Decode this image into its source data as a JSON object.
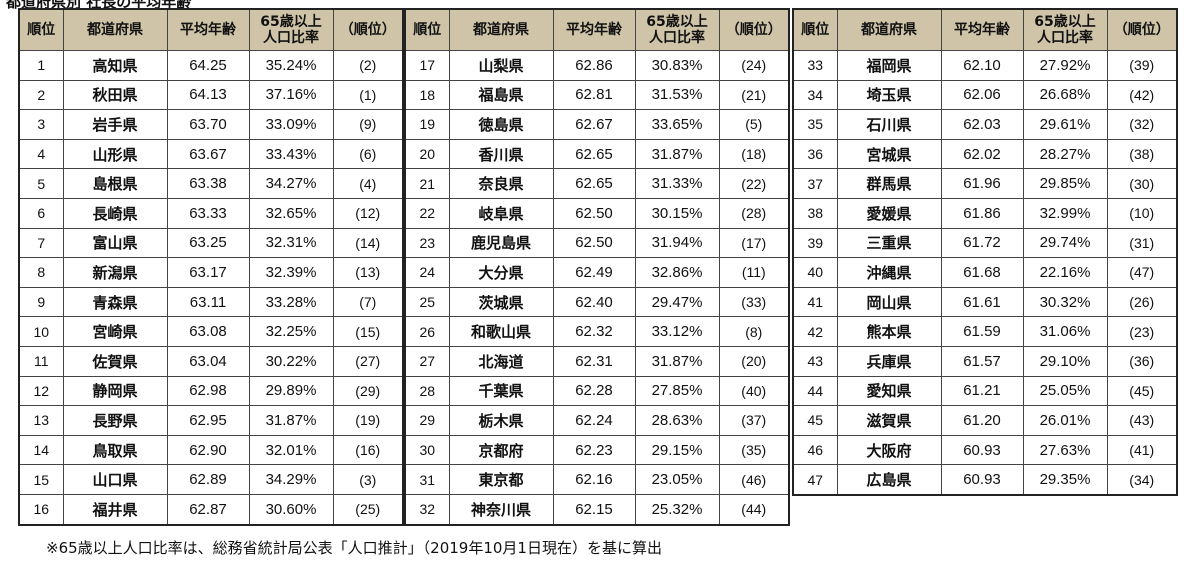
{
  "title": "都道府県別 社長の平均年齢",
  "headers": {
    "rank": "順位",
    "prefecture": "都道府県",
    "avg_age": "平均年齢",
    "elderly_ratio_line1": "65歳以上",
    "elderly_ratio_line2": "人口比率",
    "ratio_rank": "（順位）"
  },
  "tables": [
    {
      "rows": [
        {
          "rank": "1",
          "prefecture": "高知県",
          "avg_age": "64.25",
          "ratio": "35.24%",
          "ratio_rank": "(2)"
        },
        {
          "rank": "2",
          "prefecture": "秋田県",
          "avg_age": "64.13",
          "ratio": "37.16%",
          "ratio_rank": "(1)"
        },
        {
          "rank": "3",
          "prefecture": "岩手県",
          "avg_age": "63.70",
          "ratio": "33.09%",
          "ratio_rank": "(9)"
        },
        {
          "rank": "4",
          "prefecture": "山形県",
          "avg_age": "63.67",
          "ratio": "33.43%",
          "ratio_rank": "(6)"
        },
        {
          "rank": "5",
          "prefecture": "島根県",
          "avg_age": "63.38",
          "ratio": "34.27%",
          "ratio_rank": "(4)"
        },
        {
          "rank": "6",
          "prefecture": "長崎県",
          "avg_age": "63.33",
          "ratio": "32.65%",
          "ratio_rank": "(12)"
        },
        {
          "rank": "7",
          "prefecture": "富山県",
          "avg_age": "63.25",
          "ratio": "32.31%",
          "ratio_rank": "(14)"
        },
        {
          "rank": "8",
          "prefecture": "新潟県",
          "avg_age": "63.17",
          "ratio": "32.39%",
          "ratio_rank": "(13)"
        },
        {
          "rank": "9",
          "prefecture": "青森県",
          "avg_age": "63.11",
          "ratio": "33.28%",
          "ratio_rank": "(7)"
        },
        {
          "rank": "10",
          "prefecture": "宮崎県",
          "avg_age": "63.08",
          "ratio": "32.25%",
          "ratio_rank": "(15)"
        },
        {
          "rank": "11",
          "prefecture": "佐賀県",
          "avg_age": "63.04",
          "ratio": "30.22%",
          "ratio_rank": "(27)"
        },
        {
          "rank": "12",
          "prefecture": "静岡県",
          "avg_age": "62.98",
          "ratio": "29.89%",
          "ratio_rank": "(29)"
        },
        {
          "rank": "13",
          "prefecture": "長野県",
          "avg_age": "62.95",
          "ratio": "31.87%",
          "ratio_rank": "(19)"
        },
        {
          "rank": "14",
          "prefecture": "鳥取県",
          "avg_age": "62.90",
          "ratio": "32.01%",
          "ratio_rank": "(16)"
        },
        {
          "rank": "15",
          "prefecture": "山口県",
          "avg_age": "62.89",
          "ratio": "34.29%",
          "ratio_rank": "(3)"
        },
        {
          "rank": "16",
          "prefecture": "福井県",
          "avg_age": "62.87",
          "ratio": "30.60%",
          "ratio_rank": "(25)"
        }
      ]
    },
    {
      "rows": [
        {
          "rank": "17",
          "prefecture": "山梨県",
          "avg_age": "62.86",
          "ratio": "30.83%",
          "ratio_rank": "(24)"
        },
        {
          "rank": "18",
          "prefecture": "福島県",
          "avg_age": "62.81",
          "ratio": "31.53%",
          "ratio_rank": "(21)"
        },
        {
          "rank": "19",
          "prefecture": "徳島県",
          "avg_age": "62.67",
          "ratio": "33.65%",
          "ratio_rank": "(5)"
        },
        {
          "rank": "20",
          "prefecture": "香川県",
          "avg_age": "62.65",
          "ratio": "31.87%",
          "ratio_rank": "(18)"
        },
        {
          "rank": "21",
          "prefecture": "奈良県",
          "avg_age": "62.65",
          "ratio": "31.33%",
          "ratio_rank": "(22)"
        },
        {
          "rank": "22",
          "prefecture": "岐阜県",
          "avg_age": "62.50",
          "ratio": "30.15%",
          "ratio_rank": "(28)"
        },
        {
          "rank": "23",
          "prefecture": "鹿児島県",
          "avg_age": "62.50",
          "ratio": "31.94%",
          "ratio_rank": "(17)"
        },
        {
          "rank": "24",
          "prefecture": "大分県",
          "avg_age": "62.49",
          "ratio": "32.86%",
          "ratio_rank": "(11)"
        },
        {
          "rank": "25",
          "prefecture": "茨城県",
          "avg_age": "62.40",
          "ratio": "29.47%",
          "ratio_rank": "(33)"
        },
        {
          "rank": "26",
          "prefecture": "和歌山県",
          "avg_age": "62.32",
          "ratio": "33.12%",
          "ratio_rank": "(8)"
        },
        {
          "rank": "27",
          "prefecture": "北海道",
          "avg_age": "62.31",
          "ratio": "31.87%",
          "ratio_rank": "(20)"
        },
        {
          "rank": "28",
          "prefecture": "千葉県",
          "avg_age": "62.28",
          "ratio": "27.85%",
          "ratio_rank": "(40)"
        },
        {
          "rank": "29",
          "prefecture": "栃木県",
          "avg_age": "62.24",
          "ratio": "28.63%",
          "ratio_rank": "(37)"
        },
        {
          "rank": "30",
          "prefecture": "京都府",
          "avg_age": "62.23",
          "ratio": "29.15%",
          "ratio_rank": "(35)"
        },
        {
          "rank": "31",
          "prefecture": "東京都",
          "avg_age": "62.16",
          "ratio": "23.05%",
          "ratio_rank": "(46)"
        },
        {
          "rank": "32",
          "prefecture": "神奈川県",
          "avg_age": "62.15",
          "ratio": "25.32%",
          "ratio_rank": "(44)"
        }
      ]
    },
    {
      "rows": [
        {
          "rank": "33",
          "prefecture": "福岡県",
          "avg_age": "62.10",
          "ratio": "27.92%",
          "ratio_rank": "(39)"
        },
        {
          "rank": "34",
          "prefecture": "埼玉県",
          "avg_age": "62.06",
          "ratio": "26.68%",
          "ratio_rank": "(42)"
        },
        {
          "rank": "35",
          "prefecture": "石川県",
          "avg_age": "62.03",
          "ratio": "29.61%",
          "ratio_rank": "(32)"
        },
        {
          "rank": "36",
          "prefecture": "宮城県",
          "avg_age": "62.02",
          "ratio": "28.27%",
          "ratio_rank": "(38)"
        },
        {
          "rank": "37",
          "prefecture": "群馬県",
          "avg_age": "61.96",
          "ratio": "29.85%",
          "ratio_rank": "(30)"
        },
        {
          "rank": "38",
          "prefecture": "愛媛県",
          "avg_age": "61.86",
          "ratio": "32.99%",
          "ratio_rank": "(10)"
        },
        {
          "rank": "39",
          "prefecture": "三重県",
          "avg_age": "61.72",
          "ratio": "29.74%",
          "ratio_rank": "(31)"
        },
        {
          "rank": "40",
          "prefecture": "沖縄県",
          "avg_age": "61.68",
          "ratio": "22.16%",
          "ratio_rank": "(47)"
        },
        {
          "rank": "41",
          "prefecture": "岡山県",
          "avg_age": "61.61",
          "ratio": "30.32%",
          "ratio_rank": "(26)"
        },
        {
          "rank": "42",
          "prefecture": "熊本県",
          "avg_age": "61.59",
          "ratio": "31.06%",
          "ratio_rank": "(23)"
        },
        {
          "rank": "43",
          "prefecture": "兵庫県",
          "avg_age": "61.57",
          "ratio": "29.10%",
          "ratio_rank": "(36)"
        },
        {
          "rank": "44",
          "prefecture": "愛知県",
          "avg_age": "61.21",
          "ratio": "25.05%",
          "ratio_rank": "(45)"
        },
        {
          "rank": "45",
          "prefecture": "滋賀県",
          "avg_age": "61.20",
          "ratio": "26.01%",
          "ratio_rank": "(43)"
        },
        {
          "rank": "46",
          "prefecture": "大阪府",
          "avg_age": "60.93",
          "ratio": "27.63%",
          "ratio_rank": "(41)"
        },
        {
          "rank": "47",
          "prefecture": "広島県",
          "avg_age": "60.93",
          "ratio": "29.35%",
          "ratio_rank": "(34)"
        }
      ]
    }
  ],
  "footnote": "※65歳以上人口比率は、総務省統計局公表「人口推計」（2019年10月1日現在）を基に算出"
}
